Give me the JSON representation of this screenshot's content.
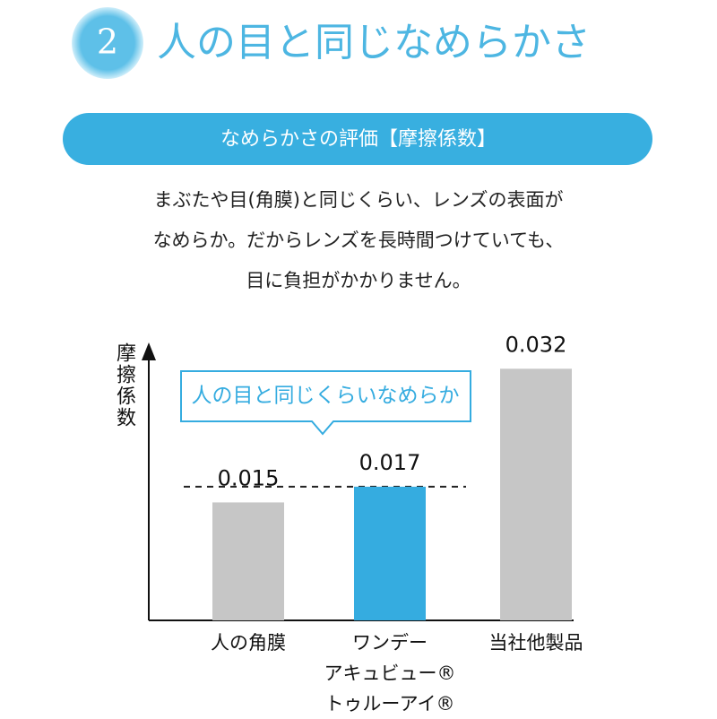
{
  "header": {
    "number": "2",
    "title": "人の目と同じなめらかさ",
    "banner": "なめらかさの評価【摩擦係数】",
    "description": [
      "まぶたや目(角膜)と同じくらい、レンズの表面が",
      "なめらか。だからレンズを長時間つけていても、",
      "目に負担がかかりません。"
    ]
  },
  "chart_data": {
    "type": "bar",
    "y_label": "摩擦係数",
    "annotation": "人の目と同じくらいなめらか",
    "categories": [
      "人の角膜",
      "ワンデー\nアキュビュー®\nトゥルーアイ®",
      "当社他製品"
    ],
    "values": [
      0.015,
      0.017,
      0.032
    ],
    "colors": [
      "#c6c6c6",
      "#35ace0",
      "#c6c6c6"
    ],
    "ylim": [
      0,
      0.035
    ]
  }
}
